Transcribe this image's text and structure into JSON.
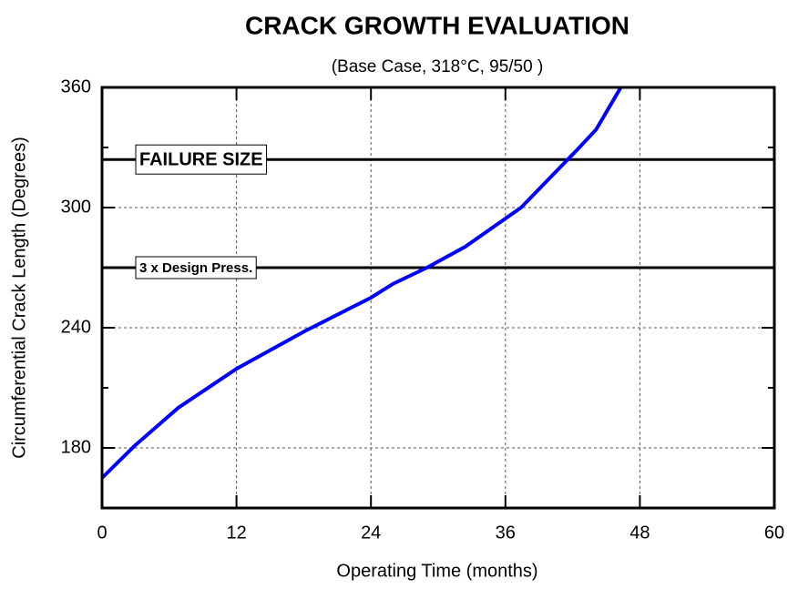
{
  "chart_data": {
    "type": "line",
    "title": "CRACK GROWTH EVALUATION",
    "subtitle": "(Base Case, 318°C, 95/50 )",
    "x_label": "Operating Time (months)",
    "y_label": "Circumferential Crack Length (Degrees)",
    "x": [
      0,
      2.9,
      6.8,
      12,
      18,
      24,
      26,
      29,
      32.4,
      37.4,
      42.6,
      44.1,
      46.3
    ],
    "series": [
      {
        "color": "#0000ff",
        "values": [
          165,
          181,
          200,
          219.5,
          238,
          255,
          262,
          270,
          280.4,
          300,
          330,
          339,
          360
        ]
      }
    ],
    "xlim": [
      0,
      60
    ],
    "xticks": [
      0,
      12,
      24,
      36,
      48,
      60
    ],
    "ylim": [
      150,
      360
    ],
    "yticks": [
      180,
      240,
      300,
      360
    ],
    "yminorticks": [
      210,
      270,
      330
    ],
    "grid": true,
    "annotations": [
      {
        "text": "FAILURE SIZE",
        "value": 324
      },
      {
        "text": "3 x Design Press.",
        "value": 270
      }
    ]
  }
}
